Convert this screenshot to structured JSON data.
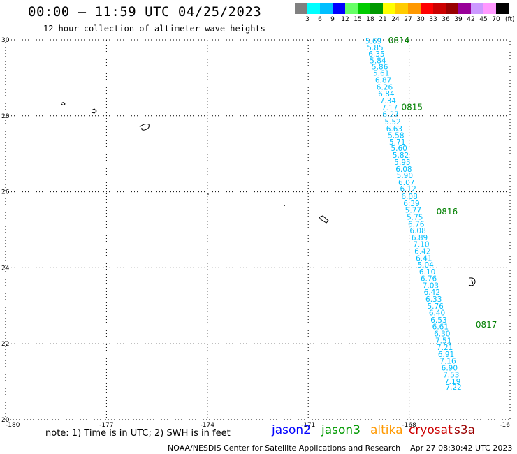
{
  "header": {
    "title": "00:00 – 11:59 UTC 04/25/2023",
    "subtitle": "12 hour collection of altimeter wave heights"
  },
  "legend": {
    "colors": [
      "#808080",
      "#00ffff",
      "#00bfff",
      "#0000ff",
      "#66ff66",
      "#00cc00",
      "#009900",
      "#ffff00",
      "#ffcc00",
      "#ff9900",
      "#ff0000",
      "#cc0000",
      "#990000",
      "#990099",
      "#cc99ff",
      "#ff99ff",
      "#000000"
    ],
    "labels": [
      "3",
      "6",
      "9",
      "12",
      "15",
      "18",
      "21",
      "24",
      "27",
      "30",
      "33",
      "36",
      "39",
      "42",
      "45",
      "70"
    ],
    "units": "(ft)"
  },
  "map": {
    "lon_ticks": [
      "-180",
      "-177",
      "-174",
      "-171",
      "-168",
      "-16"
    ],
    "lat_ticks": [
      "30",
      "28",
      "26",
      "24",
      "22",
      "20"
    ],
    "track_color": "#00bfff",
    "time_label_color": "#008000",
    "track_points": [
      {
        "lon": -169.06,
        "lat": 29.97,
        "value": "5.69"
      },
      {
        "lon": -169.01,
        "lat": 29.8,
        "value": "5.85"
      },
      {
        "lon": -168.97,
        "lat": 29.63,
        "value": "6.35"
      },
      {
        "lon": -168.93,
        "lat": 29.46,
        "value": "5.84"
      },
      {
        "lon": -168.87,
        "lat": 29.29,
        "value": "5.86"
      },
      {
        "lon": -168.83,
        "lat": 29.13,
        "value": "5.61"
      },
      {
        "lon": -168.77,
        "lat": 28.94,
        "value": "6.87"
      },
      {
        "lon": -168.73,
        "lat": 28.76,
        "value": "6.26"
      },
      {
        "lon": -168.68,
        "lat": 28.58,
        "value": "6.84"
      },
      {
        "lon": -168.63,
        "lat": 28.4,
        "value": "7.34"
      },
      {
        "lon": -168.58,
        "lat": 28.22,
        "value": "7.17"
      },
      {
        "lon": -168.55,
        "lat": 28.04,
        "value": "6.27"
      },
      {
        "lon": -168.49,
        "lat": 27.85,
        "value": "5.52"
      },
      {
        "lon": -168.44,
        "lat": 27.67,
        "value": "6.63"
      },
      {
        "lon": -168.39,
        "lat": 27.49,
        "value": "5.58"
      },
      {
        "lon": -168.35,
        "lat": 27.32,
        "value": "5.71"
      },
      {
        "lon": -168.3,
        "lat": 27.15,
        "value": "5.60"
      },
      {
        "lon": -168.25,
        "lat": 26.97,
        "value": "5.82"
      },
      {
        "lon": -168.2,
        "lat": 26.78,
        "value": "5.95"
      },
      {
        "lon": -168.16,
        "lat": 26.6,
        "value": "6.08"
      },
      {
        "lon": -168.13,
        "lat": 26.43,
        "value": "5.90"
      },
      {
        "lon": -168.08,
        "lat": 26.25,
        "value": "6.07"
      },
      {
        "lon": -168.03,
        "lat": 26.08,
        "value": "6.12"
      },
      {
        "lon": -167.99,
        "lat": 25.88,
        "value": "6.08"
      },
      {
        "lon": -167.93,
        "lat": 25.7,
        "value": "6.39"
      },
      {
        "lon": -167.88,
        "lat": 25.52,
        "value": "5.77"
      },
      {
        "lon": -167.83,
        "lat": 25.34,
        "value": "5.75"
      },
      {
        "lon": -167.79,
        "lat": 25.16,
        "value": "6.76"
      },
      {
        "lon": -167.74,
        "lat": 24.98,
        "value": "6.08"
      },
      {
        "lon": -167.69,
        "lat": 24.8,
        "value": "6.89"
      },
      {
        "lon": -167.64,
        "lat": 24.62,
        "value": "7.10"
      },
      {
        "lon": -167.6,
        "lat": 24.44,
        "value": "6.42"
      },
      {
        "lon": -167.56,
        "lat": 24.26,
        "value": "6.41"
      },
      {
        "lon": -167.51,
        "lat": 24.08,
        "value": "5.04"
      },
      {
        "lon": -167.46,
        "lat": 23.9,
        "value": "6.10"
      },
      {
        "lon": -167.42,
        "lat": 23.72,
        "value": "6.76"
      },
      {
        "lon": -167.36,
        "lat": 23.54,
        "value": "7.03"
      },
      {
        "lon": -167.32,
        "lat": 23.36,
        "value": "6.42"
      },
      {
        "lon": -167.27,
        "lat": 23.18,
        "value": "6.33"
      },
      {
        "lon": -167.22,
        "lat": 23.0,
        "value": "5.76"
      },
      {
        "lon": -167.17,
        "lat": 22.82,
        "value": "6.40"
      },
      {
        "lon": -167.12,
        "lat": 22.63,
        "value": "6.53"
      },
      {
        "lon": -167.07,
        "lat": 22.45,
        "value": "6.61"
      },
      {
        "lon": -167.02,
        "lat": 22.27,
        "value": "6.30"
      },
      {
        "lon": -166.98,
        "lat": 22.09,
        "value": "7.51"
      },
      {
        "lon": -166.94,
        "lat": 21.91,
        "value": "7.21"
      },
      {
        "lon": -166.9,
        "lat": 21.73,
        "value": "6.91"
      },
      {
        "lon": -166.85,
        "lat": 21.55,
        "value": "7.16"
      },
      {
        "lon": -166.8,
        "lat": 21.37,
        "value": "6.90"
      },
      {
        "lon": -166.75,
        "lat": 21.19,
        "value": "7.53"
      },
      {
        "lon": -166.71,
        "lat": 21.01,
        "value": "7.19"
      },
      {
        "lon": -166.68,
        "lat": 20.86,
        "value": "7.22"
      }
    ],
    "time_labels": [
      {
        "lon": -168.62,
        "lat": 29.98,
        "text": "0814"
      },
      {
        "lon": -168.23,
        "lat": 28.23,
        "text": "0815"
      },
      {
        "lon": -167.19,
        "lat": 25.48,
        "text": "0816"
      },
      {
        "lon": -166.02,
        "lat": 22.5,
        "text": "0817"
      }
    ]
  },
  "footer": {
    "note": "note: 1) Time is in UTC; 2) SWH is in feet",
    "missions": [
      {
        "name": "jason2",
        "color": "#0000ff"
      },
      {
        "name": "jason3",
        "color": "#009900"
      },
      {
        "name": "altika",
        "color": "#ff9900"
      },
      {
        "name": "cryosat",
        "color": "#cc0000"
      },
      {
        "name": "s3a",
        "color": "#990000"
      }
    ],
    "credit": "NOAA/NESDIS Center for Satellite Applications and Research    Apr 27 08:30:42 UTC 2023"
  }
}
